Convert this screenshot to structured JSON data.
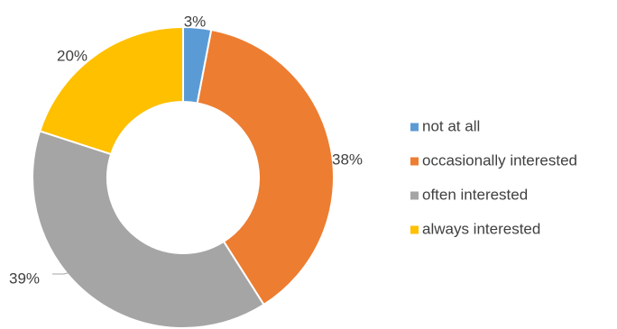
{
  "chart_data": {
    "type": "pie",
    "donut": true,
    "categories": [
      "not at all",
      "occasionally interested",
      "often interested",
      "always interested"
    ],
    "values": [
      3,
      38,
      39,
      20
    ],
    "value_labels": [
      "3%",
      "38%",
      "39%",
      "20%"
    ],
    "colors": [
      "#5B9BD5",
      "#ED7D31",
      "#A5A5A5",
      "#FFC000"
    ],
    "legend": {
      "position": "right",
      "entries": [
        "not at all",
        "occasionally interested",
        "often interested",
        "always interested"
      ]
    }
  }
}
